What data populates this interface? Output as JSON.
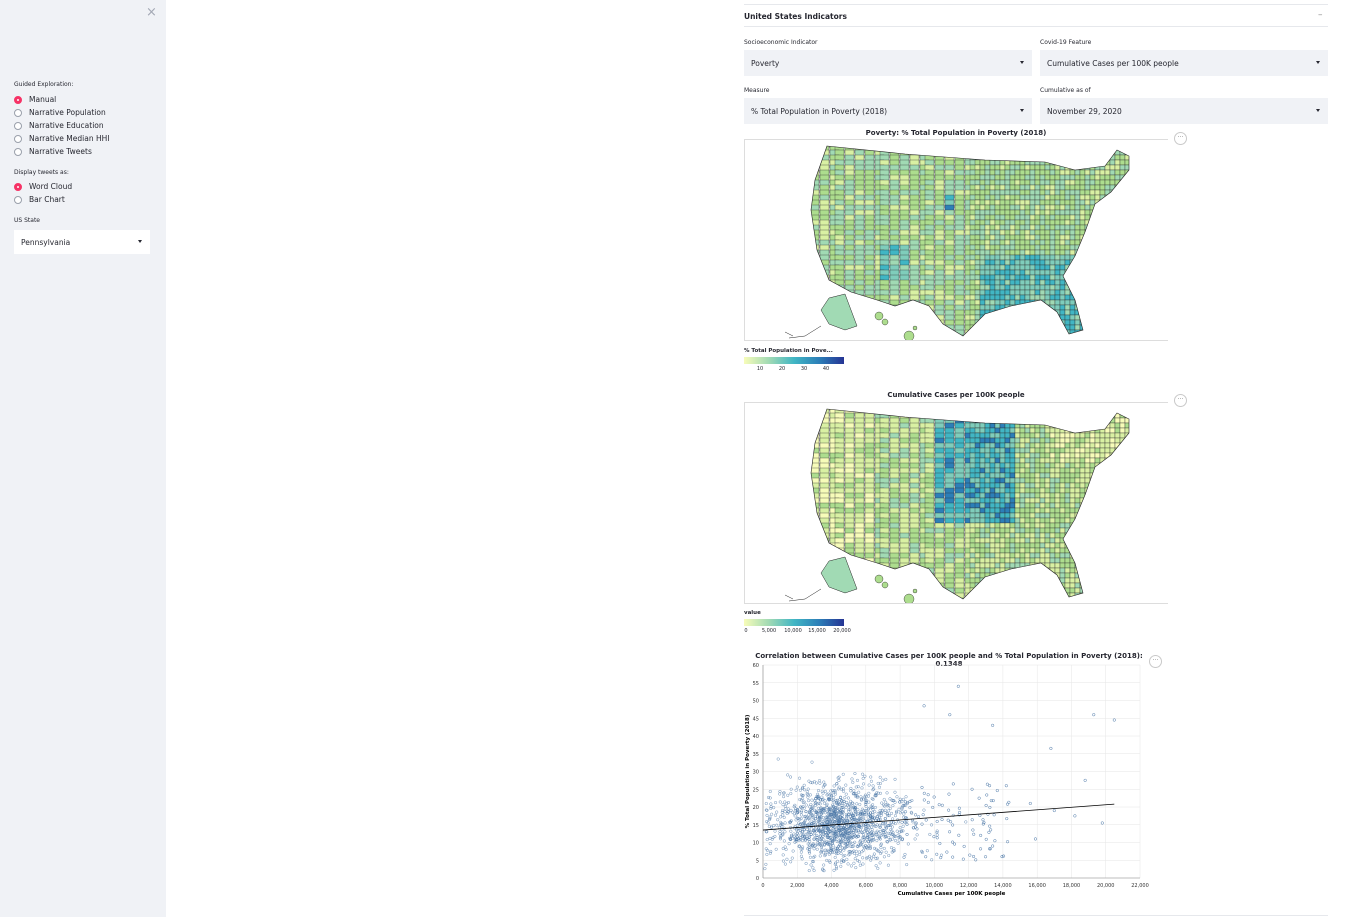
{
  "sidebar": {
    "close_symbol": "×",
    "guided_label": "Guided Exploration:",
    "guided_options": [
      "Manual",
      "Narrative Population",
      "Narrative Education",
      "Narrative Median HHI",
      "Narrative Tweets"
    ],
    "guided_selected": "Manual",
    "tweets_label": "Display tweets as:",
    "tweet_options": [
      "Word Cloud",
      "Bar Chart"
    ],
    "tweet_selected": "Word Cloud",
    "state_label": "US State",
    "state_value": "Pennsylvania"
  },
  "expander": {
    "title": "United States Indicators",
    "toggle": "–"
  },
  "controls": {
    "socio_label": "Socioeconomic Indicator",
    "socio_value": "Poverty",
    "covid_label": "Covid-19 Feature",
    "covid_value": "Cumulative Cases per 100K people",
    "measure_label": "Measure",
    "measure_value": "% Total Population in Poverty (2018)",
    "cumulative_label": "Cumulative as of",
    "cumulative_value": "November 29, 2020"
  },
  "map1": {
    "title": "Poverty: % Total Population in Poverty (2018)",
    "legend_title": "% Total Population in Pove...",
    "legend_ticks": [
      "10",
      "20",
      "30",
      "40"
    ]
  },
  "map2": {
    "title": "Cumulative Cases per 100K people",
    "legend_title": "value",
    "legend_ticks": [
      "0",
      "5,000",
      "10,000",
      "15,000",
      "20,000"
    ]
  },
  "menu_symbol": "···",
  "colors": {
    "accent": "#f63366",
    "map_low": "#f7fcb9",
    "map_mid": "#41b6c4",
    "map_high": "#253494",
    "point": "#4c78a8"
  },
  "chart_data": {
    "type": "scatter",
    "title": "Correlation between Cumulative Cases per 100K people and % Total Population in Poverty (2018): 0.1348",
    "xlabel": "Cumulative Cases per 100K people",
    "ylabel": "% Total Population in Poverty (2018)",
    "xlim": [
      0,
      22000
    ],
    "ylim": [
      0,
      60
    ],
    "x_ticks": [
      "0",
      "2,000",
      "4,000",
      "6,000",
      "8,000",
      "10,000",
      "12,000",
      "14,000",
      "16,000",
      "18,000",
      "20,000",
      "22,000"
    ],
    "y_ticks": [
      "0",
      "5",
      "10",
      "15",
      "20",
      "25",
      "30",
      "35",
      "40",
      "45",
      "50",
      "55",
      "60"
    ],
    "grid": true,
    "trend_line": {
      "x": [
        0,
        20500
      ],
      "y": [
        13.5,
        20.8
      ]
    },
    "outliers": [
      {
        "x": 11400,
        "y": 54
      },
      {
        "x": 9400,
        "y": 48.5
      },
      {
        "x": 19300,
        "y": 46
      },
      {
        "x": 20500,
        "y": 44.5
      },
      {
        "x": 10900,
        "y": 46
      },
      {
        "x": 16800,
        "y": 36.5
      },
      {
        "x": 18800,
        "y": 27.5
      },
      {
        "x": 13400,
        "y": 43
      },
      {
        "x": 19800,
        "y": 15.5
      },
      {
        "x": 18200,
        "y": 17.5
      },
      {
        "x": 15600,
        "y": 21
      },
      {
        "x": 15900,
        "y": 11
      },
      {
        "x": 12700,
        "y": 12
      },
      {
        "x": 17000,
        "y": 19
      },
      {
        "x": 14200,
        "y": 26
      },
      {
        "x": 12200,
        "y": 25
      }
    ]
  }
}
